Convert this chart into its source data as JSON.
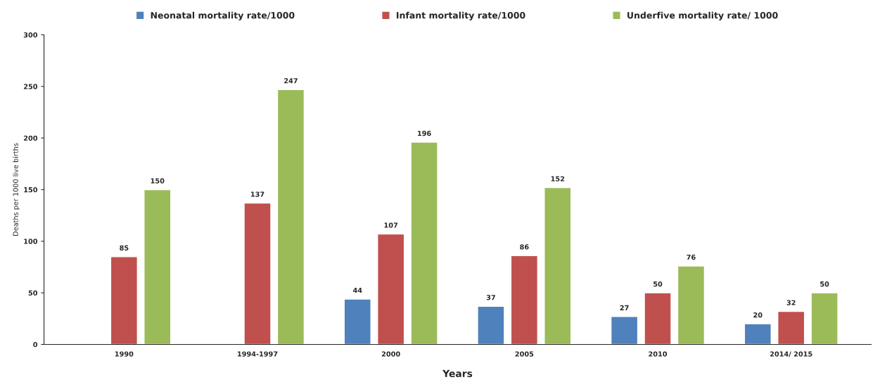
{
  "chart_data": {
    "type": "bar",
    "xlabel": "Years",
    "ylabel": "Deaths per 1000 live births",
    "categories": [
      "1990",
      "1994-1997",
      "2000",
      "2005",
      "2010",
      "2014/ 2015"
    ],
    "series": [
      {
        "name": "Neonatal mortality rate/1000",
        "color": "#4f81bd",
        "values": [
          null,
          null,
          44,
          37,
          27,
          20
        ]
      },
      {
        "name": "Infant mortality rate/1000",
        "color": "#c0504d",
        "values": [
          85,
          137,
          107,
          86,
          50,
          32
        ]
      },
      {
        "name": "Underfive mortality rate/ 1000",
        "color": "#9bbb59",
        "values": [
          150,
          247,
          196,
          152,
          76,
          50
        ]
      }
    ],
    "ylim": [
      0,
      300
    ],
    "yticks": [
      0,
      50,
      100,
      150,
      200,
      250,
      300
    ],
    "data_labels": true,
    "legend": "top",
    "grid": false
  }
}
